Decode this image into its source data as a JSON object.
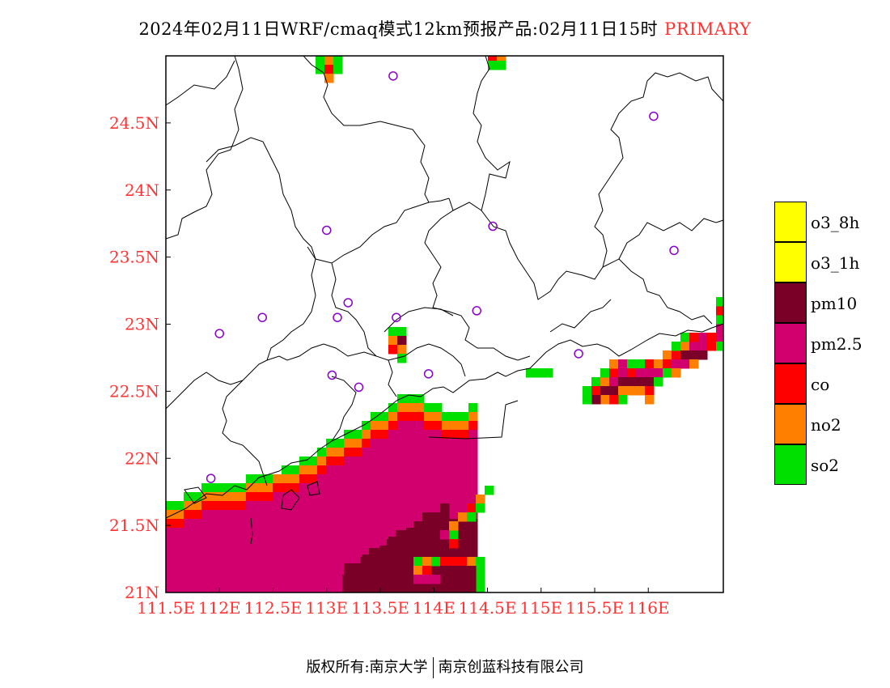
{
  "title": {
    "main": "2024年02月11日WRF/cmaq模式12km预报产品:02月11日15时",
    "tag": "PRIMARY",
    "tag_color": "#ff3333"
  },
  "map": {
    "lon_range": [
      111.5,
      116.7
    ],
    "lat_range": [
      21.0,
      25.0
    ],
    "lon_ticks": [
      "111.5E",
      "112E",
      "112.5E",
      "113E",
      "113.5E",
      "114E",
      "114.5E",
      "115E",
      "115.5E",
      "116E"
    ],
    "lat_ticks": [
      "21N",
      "21.5N",
      "22N",
      "22.5N",
      "23N",
      "23.5N",
      "24N",
      "24.5N"
    ],
    "tick_label_color": "#ff3333",
    "stations": [
      {
        "lon": 113.62,
        "lat": 24.85
      },
      {
        "lon": 116.05,
        "lat": 24.55
      },
      {
        "lon": 113.0,
        "lat": 23.7
      },
      {
        "lon": 114.55,
        "lat": 23.73
      },
      {
        "lon": 116.24,
        "lat": 23.55
      },
      {
        "lon": 113.2,
        "lat": 23.16
      },
      {
        "lon": 113.1,
        "lat": 23.05
      },
      {
        "lon": 113.65,
        "lat": 23.05
      },
      {
        "lon": 114.4,
        "lat": 23.1
      },
      {
        "lon": 112.4,
        "lat": 23.05
      },
      {
        "lon": 112.0,
        "lat": 22.93
      },
      {
        "lon": 115.35,
        "lat": 22.78
      },
      {
        "lon": 113.05,
        "lat": 22.62
      },
      {
        "lon": 113.95,
        "lat": 22.63
      },
      {
        "lon": 113.3,
        "lat": 22.53
      },
      {
        "lon": 111.92,
        "lat": 21.85
      }
    ],
    "station_color": "#8800cc"
  },
  "legend": [
    {
      "label": "o3_8h",
      "color": "#ffff00"
    },
    {
      "label": "o3_1h",
      "color": "#ffff00"
    },
    {
      "label": "pm10",
      "color": "#7a0028"
    },
    {
      "label": "pm2.5",
      "color": "#d2006e"
    },
    {
      "label": "co",
      "color": "#ff0000"
    },
    {
      "label": "no2",
      "color": "#ff8000"
    },
    {
      "label": "so2",
      "color": "#00e000"
    }
  ],
  "colors": {
    "pm25": "#d2006e",
    "pm10": "#7a0028",
    "co": "#ff0000",
    "no2": "#ff8000",
    "so2": "#00e000"
  },
  "footer": {
    "left": "版权所有:南京大学",
    "right": "南京创蓝科技有限公司"
  }
}
